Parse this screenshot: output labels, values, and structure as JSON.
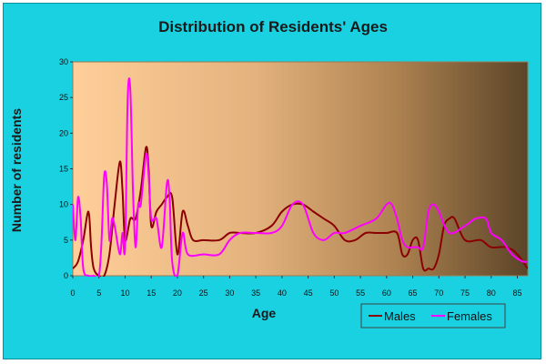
{
  "chart_data": {
    "type": "line",
    "title": "Distribution of Residents' Ages",
    "xlabel": "Age",
    "ylabel": "Number of residents",
    "xlim": [
      0,
      87
    ],
    "ylim": [
      0,
      30
    ],
    "x_ticks": [
      0,
      5,
      10,
      15,
      20,
      25,
      30,
      35,
      40,
      45,
      50,
      55,
      60,
      65,
      70,
      75,
      80,
      85
    ],
    "y_ticks": [
      0,
      5,
      10,
      15,
      20,
      25,
      30
    ],
    "grid": false,
    "legend_position": "bottom-right",
    "series": [
      {
        "name": "Males",
        "color": "#8b0000",
        "x": [
          0,
          1,
          2,
          3,
          3.5,
          4,
          5,
          6,
          7,
          8,
          9,
          9.5,
          10,
          11,
          12,
          13,
          14,
          14.5,
          15,
          16,
          17,
          18,
          19,
          20,
          21,
          22,
          23,
          25,
          28,
          30,
          32,
          35,
          38,
          40,
          42,
          44,
          46,
          48,
          50,
          52,
          54,
          56,
          58,
          60,
          62,
          63,
          64,
          65,
          66,
          67,
          68,
          69,
          70,
          71,
          72,
          73,
          75,
          78,
          80,
          83,
          85,
          87
        ],
        "y": [
          1,
          2,
          5,
          9,
          4,
          1,
          0,
          0,
          3,
          10,
          16,
          12,
          5,
          8,
          8,
          12,
          18,
          15,
          7,
          9,
          10,
          11,
          11,
          3,
          9,
          7,
          5,
          5,
          5,
          6,
          6,
          6,
          7,
          9,
          10,
          10,
          9,
          8,
          7,
          5,
          5,
          6,
          6,
          6,
          6,
          3,
          3,
          5,
          5,
          1,
          1,
          1,
          3,
          7,
          8,
          8,
          5,
          5,
          4,
          4,
          3,
          1
        ]
      },
      {
        "name": "Females",
        "color": "#ff00ff",
        "x": [
          0,
          0.5,
          1,
          1.5,
          2,
          3,
          4,
          5,
          5.5,
          6,
          6.5,
          7,
          7.5,
          8,
          9,
          9.5,
          10,
          10.5,
          11,
          11.5,
          12,
          12.5,
          13,
          14,
          14.5,
          15,
          16,
          17,
          18,
          18.5,
          19,
          20,
          21,
          22,
          25,
          28,
          30,
          32,
          35,
          38,
          40,
          42,
          44,
          46,
          48,
          50,
          52,
          55,
          58,
          60,
          61,
          62,
          63,
          64,
          65,
          66,
          67,
          68,
          69,
          70,
          72,
          75,
          77,
          79,
          80,
          82,
          84,
          86,
          87
        ],
        "y": [
          10,
          5,
          11,
          8,
          1,
          0,
          0,
          0,
          5,
          14,
          13,
          5,
          8,
          7,
          3,
          6,
          4,
          25,
          26,
          12,
          4,
          10,
          10,
          17,
          14,
          8,
          8,
          4,
          13,
          11,
          2,
          0,
          6,
          3,
          3,
          3,
          5,
          6,
          6,
          6,
          7,
          10,
          10,
          6,
          5,
          6,
          6,
          7,
          8,
          10,
          10,
          8,
          5,
          4,
          4,
          4,
          4,
          9,
          10,
          9,
          6,
          7,
          8,
          8,
          6,
          5,
          3,
          2,
          2
        ]
      }
    ]
  }
}
